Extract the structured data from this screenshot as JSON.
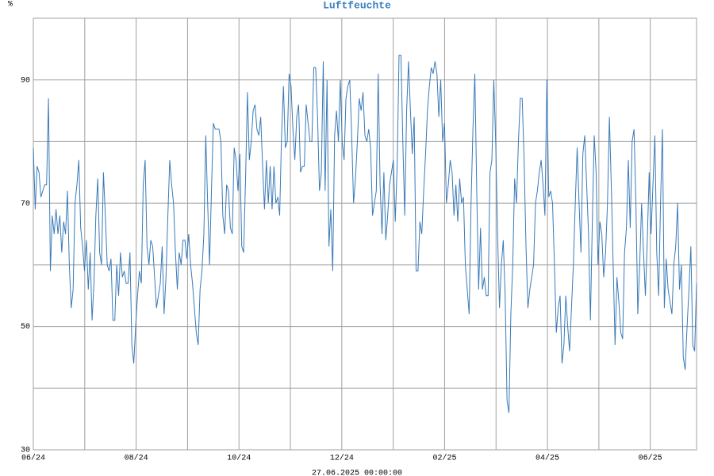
{
  "chart_data": {
    "type": "line",
    "title": "Luftfeuchte",
    "y_unit": "%",
    "footer": "27.06.2025 00:00:00",
    "color": "#3a7ab8",
    "title_color": "#3a80c0",
    "xlim": [
      0,
      12.9
    ],
    "xgrid": [
      0,
      1,
      2,
      3,
      4,
      5,
      6,
      7,
      8,
      9,
      10,
      11,
      12
    ],
    "xticks": [
      {
        "value": 0,
        "label": "06/24"
      },
      {
        "value": 2,
        "label": "08/24"
      },
      {
        "value": 4,
        "label": "10/24"
      },
      {
        "value": 6,
        "label": "12/24"
      },
      {
        "value": 8,
        "label": "02/25"
      },
      {
        "value": 10,
        "label": "04/25"
      },
      {
        "value": 12,
        "label": "06/25"
      }
    ],
    "ylim": [
      30,
      100
    ],
    "ygrid": [
      30,
      40,
      50,
      60,
      70,
      80,
      90,
      100
    ],
    "yticks": [
      30,
      50,
      70,
      90
    ],
    "series": [
      {
        "name": "Luftfeuchte",
        "values": [
          79,
          69,
          76,
          75,
          71,
          72,
          73,
          73,
          87,
          59,
          68,
          65,
          69,
          65,
          68,
          62,
          67,
          65,
          72,
          60,
          53,
          56,
          70,
          73,
          77,
          66,
          63,
          59,
          64,
          56,
          62,
          51,
          57,
          68,
          74,
          62,
          60,
          75,
          68,
          60,
          59,
          61,
          51,
          51,
          60,
          55,
          62,
          58,
          59,
          57,
          57,
          62,
          47,
          44,
          50,
          55,
          59,
          57,
          73,
          77,
          63,
          60,
          64,
          63,
          58,
          53,
          55,
          57,
          63,
          52,
          58,
          68,
          77,
          73,
          70,
          62,
          56,
          62,
          60,
          64,
          64,
          61,
          65,
          60,
          57,
          53,
          49,
          47,
          56,
          59,
          65,
          81,
          70,
          60,
          72,
          83,
          82,
          82,
          82,
          80,
          68,
          65,
          73,
          72,
          66,
          65,
          79,
          77,
          72,
          78,
          63,
          62,
          74,
          88,
          77,
          80,
          85,
          86,
          82,
          81,
          84,
          76,
          69,
          77,
          70,
          76,
          69,
          76,
          70,
          71,
          68,
          81,
          89,
          79,
          80,
          91,
          89,
          82,
          77,
          84,
          86,
          75,
          76,
          76,
          86,
          83,
          80,
          80,
          92,
          92,
          84,
          72,
          75,
          93,
          72,
          90,
          63,
          69,
          59,
          81,
          85,
          80,
          90,
          80,
          77,
          87,
          89,
          90,
          81,
          70,
          74,
          80,
          87,
          85,
          88,
          81,
          80,
          82,
          79,
          68,
          70,
          72,
          91,
          73,
          65,
          75,
          64,
          68,
          73,
          75,
          77,
          67,
          76,
          94,
          94,
          80,
          68,
          85,
          93,
          85,
          78,
          84,
          59,
          59,
          67,
          65,
          72,
          78,
          85,
          89,
          92,
          91,
          93,
          91,
          84,
          90,
          80,
          83,
          70,
          73,
          77,
          75,
          68,
          73,
          67,
          74,
          70,
          71,
          60,
          56,
          52,
          70,
          82,
          91,
          72,
          56,
          66,
          56,
          58,
          55,
          55,
          75,
          77,
          90,
          80,
          65,
          53,
          60,
          64,
          55,
          38,
          36,
          52,
          60,
          74,
          70,
          80,
          87,
          87,
          77,
          63,
          53,
          56,
          58,
          60,
          70,
          72,
          75,
          77,
          73,
          68,
          90,
          71,
          72,
          70,
          60,
          49,
          53,
          55,
          44,
          47,
          55,
          50,
          46,
          53,
          60,
          70,
          79,
          70,
          62,
          78,
          81,
          73,
          65,
          51,
          67,
          81,
          75,
          60,
          67,
          65,
          58,
          62,
          70,
          84,
          73,
          60,
          47,
          58,
          54,
          49,
          48,
          62,
          66,
          77,
          66,
          80,
          82,
          70,
          52,
          60,
          70,
          62,
          55,
          64,
          75,
          65,
          73,
          81,
          62,
          55,
          70,
          82,
          53,
          61,
          56,
          54,
          52,
          60,
          63,
          70,
          56,
          60,
          45,
          43,
          50,
          56,
          63,
          47,
          46,
          57
        ]
      }
    ]
  }
}
